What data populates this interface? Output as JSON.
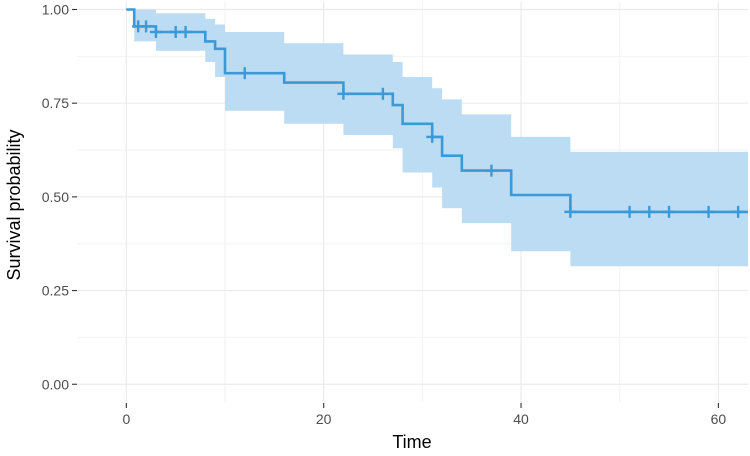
{
  "chart_data": {
    "type": "line",
    "xlabel": "Time",
    "ylabel": "Survival probability",
    "xlim": [
      -5,
      63
    ],
    "ylim": [
      -0.05,
      1.02
    ],
    "x_ticks": [
      0,
      20,
      40,
      60
    ],
    "x_tick_labels": [
      "0",
      "20",
      "40",
      "60"
    ],
    "y_ticks": [
      0,
      0.25,
      0.5,
      0.75,
      1.0
    ],
    "y_tick_labels": [
      "0.00",
      "0.25",
      "0.50",
      "0.75",
      "1.00"
    ],
    "grid": true,
    "legend": "none",
    "series": [
      {
        "style": "step",
        "color": "#3a9ad9",
        "ci_color": "#bcdcf3",
        "steps": [
          {
            "x": 0,
            "y": 1.0,
            "lower": 1.0,
            "upper": 1.0
          },
          {
            "x": 0.8,
            "y": 0.955,
            "lower": 0.915,
            "upper": 1.0
          },
          {
            "x": 3,
            "y": 0.94,
            "lower": 0.89,
            "upper": 0.99
          },
          {
            "x": 8,
            "y": 0.915,
            "lower": 0.86,
            "upper": 0.975
          },
          {
            "x": 9,
            "y": 0.895,
            "lower": 0.82,
            "upper": 0.96
          },
          {
            "x": 10,
            "y": 0.83,
            "lower": 0.73,
            "upper": 0.94
          },
          {
            "x": 16,
            "y": 0.805,
            "lower": 0.695,
            "upper": 0.91
          },
          {
            "x": 22,
            "y": 0.775,
            "lower": 0.665,
            "upper": 0.88
          },
          {
            "x": 27,
            "y": 0.745,
            "lower": 0.63,
            "upper": 0.86
          },
          {
            "x": 28,
            "y": 0.695,
            "lower": 0.565,
            "upper": 0.82
          },
          {
            "x": 31,
            "y": 0.66,
            "lower": 0.525,
            "upper": 0.79
          },
          {
            "x": 32,
            "y": 0.61,
            "lower": 0.47,
            "upper": 0.76
          },
          {
            "x": 34,
            "y": 0.57,
            "lower": 0.43,
            "upper": 0.72
          },
          {
            "x": 39,
            "y": 0.505,
            "lower": 0.355,
            "upper": 0.66
          },
          {
            "x": 45,
            "y": 0.46,
            "lower": 0.315,
            "upper": 0.62
          }
        ],
        "end_x": 63,
        "censored": [
          {
            "x": 1.2,
            "y": 0.955
          },
          {
            "x": 2,
            "y": 0.955
          },
          {
            "x": 3,
            "y": 0.94
          },
          {
            "x": 5,
            "y": 0.94
          },
          {
            "x": 6,
            "y": 0.94
          },
          {
            "x": 12,
            "y": 0.83
          },
          {
            "x": 22,
            "y": 0.775
          },
          {
            "x": 26,
            "y": 0.775
          },
          {
            "x": 31,
            "y": 0.66
          },
          {
            "x": 37,
            "y": 0.57
          },
          {
            "x": 45,
            "y": 0.46
          },
          {
            "x": 51,
            "y": 0.46
          },
          {
            "x": 53,
            "y": 0.46
          },
          {
            "x": 55,
            "y": 0.46
          },
          {
            "x": 59,
            "y": 0.46
          },
          {
            "x": 62,
            "y": 0.46
          }
        ]
      }
    ]
  }
}
